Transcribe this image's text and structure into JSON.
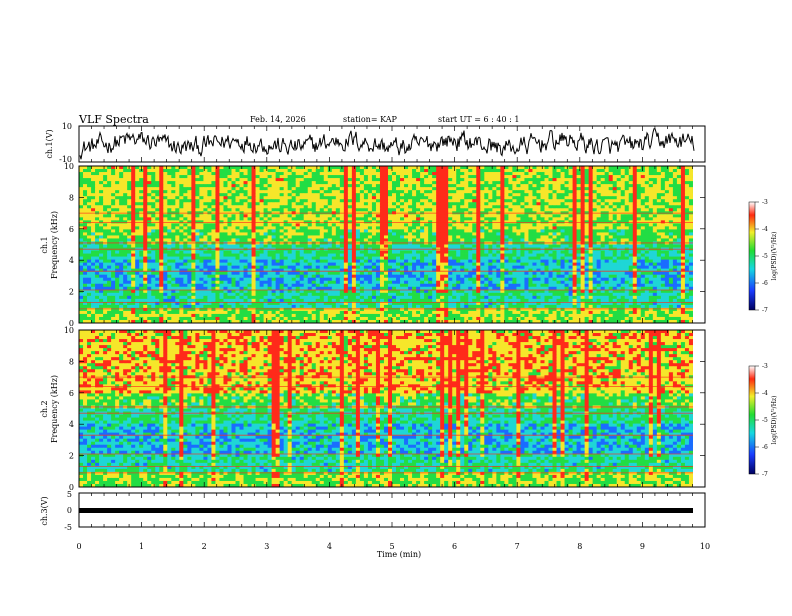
{
  "header": {
    "title": "VLF Spectra",
    "date": "Feb. 14, 2026",
    "station": "station= KAP",
    "start_ut": "start  UT =   6  : 40 : 1"
  },
  "chart_data": [
    {
      "type": "line",
      "name": "ch1-waveform",
      "ylabel": "ch.1(V)",
      "ylim": [
        -10,
        10
      ],
      "yticks": [
        "10",
        "-10"
      ],
      "xlim": [
        0,
        9.83
      ],
      "summary": "dense noisy voltage trace, roughly between -8 and 8 V"
    },
    {
      "type": "heatmap",
      "name": "ch1-spectrogram",
      "ylabel": "ch.1 Frequency (kHz)",
      "ylim": [
        0,
        10
      ],
      "yticks": [
        "0",
        "2",
        "4",
        "6",
        "8",
        "10"
      ],
      "colorbar": {
        "label": "log(PSD)(V²/Hz)",
        "range": [
          -7,
          -3
        ],
        "ticks": [
          "-3",
          "-4",
          "-5",
          "-6",
          "-7"
        ]
      }
    },
    {
      "type": "heatmap",
      "name": "ch2-spectrogram",
      "ylabel": "ch.2 Frequency (kHz)",
      "ylim": [
        0,
        10
      ],
      "yticks": [
        "0",
        "2",
        "4",
        "6",
        "8",
        "10"
      ],
      "colorbar": {
        "label": "log(PSD)(V²/Hz)",
        "range": [
          -7,
          -3
        ],
        "ticks": [
          "-3",
          "-4",
          "-5",
          "-6",
          "-7"
        ]
      }
    },
    {
      "type": "line",
      "name": "ch3-waveform",
      "ylabel": "ch.3(V)",
      "ylim": [
        -5,
        5
      ],
      "yticks": [
        "5",
        "0",
        "-5"
      ],
      "summary": "flat thick trace near -0.3 V"
    }
  ],
  "x_axis": {
    "label": "Time  (min)",
    "xlim": [
      0,
      10
    ],
    "ticks": [
      "0",
      "1",
      "2",
      "3",
      "4",
      "5",
      "6",
      "7",
      "8",
      "9",
      "10"
    ]
  },
  "colors": {
    "high": "#ff2a1a",
    "mid_high": "#f6e62a",
    "mid": "#22dd44",
    "mid_low": "#1fd6d6",
    "low": "#1a6cff",
    "lowest": "#000064"
  }
}
